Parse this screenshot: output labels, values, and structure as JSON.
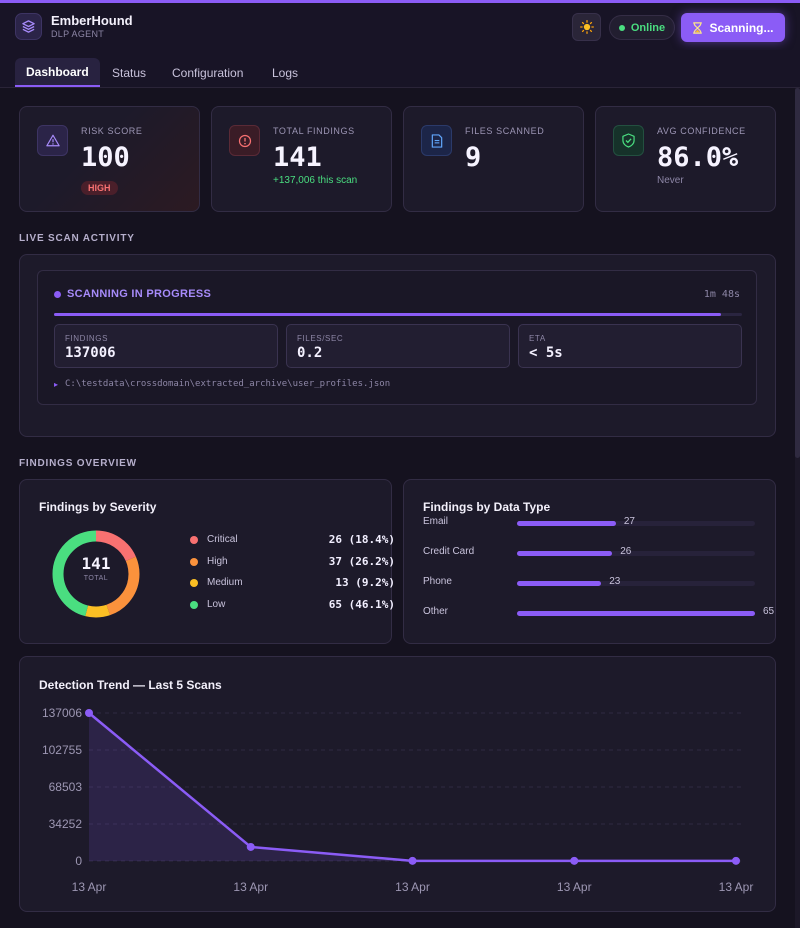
{
  "app": {
    "name": "EmberHound",
    "subtitle": "DLP AGENT",
    "status": "Online",
    "scan_button": "Scanning..."
  },
  "tabs": [
    {
      "label": "Dashboard",
      "active": true
    },
    {
      "label": "Status",
      "active": false
    },
    {
      "label": "Configuration",
      "active": false
    },
    {
      "label": "Logs",
      "active": false
    }
  ],
  "stats": {
    "risk": {
      "label": "RISK SCORE",
      "value": "100",
      "badge": "HIGH"
    },
    "findings": {
      "label": "TOTAL FINDINGS",
      "value": "141",
      "sub": "+137,006 this scan"
    },
    "files": {
      "label": "FILES SCANNED",
      "value": "9"
    },
    "confidence": {
      "label": "AVG CONFIDENCE",
      "value": "86.0%",
      "sub": "Never"
    }
  },
  "live_scan": {
    "section_title": "LIVE SCAN ACTIVITY",
    "status": "SCANNING IN PROGRESS",
    "elapsed": "1m 48s",
    "progress": 0.97,
    "metrics": [
      {
        "label": "FINDINGS",
        "value": "137006"
      },
      {
        "label": "FILES/SEC",
        "value": "0.2"
      },
      {
        "label": "ETA",
        "value": "< 5s"
      }
    ],
    "current_file": "C:\\testdata\\crossdomain\\extracted_archive\\user_profiles.json"
  },
  "overview": {
    "section_title": "FINDINGS OVERVIEW",
    "severity": {
      "title": "Findings by Severity",
      "total": "141",
      "total_label": "TOTAL",
      "items": [
        {
          "name": "Critical",
          "value": "26 (18.4%)",
          "count": 26,
          "color": "#f87171"
        },
        {
          "name": "High",
          "value": "37 (26.2%)",
          "count": 37,
          "color": "#fb923c"
        },
        {
          "name": "Medium",
          "value": "13 (9.2%)",
          "count": 13,
          "color": "#fbbf24"
        },
        {
          "name": "Low",
          "value": "65 (46.1%)",
          "count": 65,
          "color": "#4ade80"
        }
      ]
    },
    "data_type": {
      "title": "Findings by Data Type",
      "max": 65,
      "items": [
        {
          "name": "Email",
          "value": 27
        },
        {
          "name": "Credit Card",
          "value": 26
        },
        {
          "name": "Phone",
          "value": 23
        },
        {
          "name": "Other",
          "value": 65
        }
      ]
    }
  },
  "trend": {
    "title": "Detection Trend — Last 5 Scans"
  },
  "chart_data": {
    "type": "line",
    "title": "Detection Trend — Last 5 Scans",
    "categories": [
      "13 Apr",
      "13 Apr",
      "13 Apr",
      "13 Apr",
      "13 Apr"
    ],
    "values": [
      137006,
      13000,
      141,
      141,
      141
    ],
    "y_ticks": [
      "137006",
      "102755",
      "68503",
      "34252",
      "0"
    ],
    "ylim": [
      0,
      137006
    ],
    "grid": true,
    "color": "#8b5cf6"
  }
}
